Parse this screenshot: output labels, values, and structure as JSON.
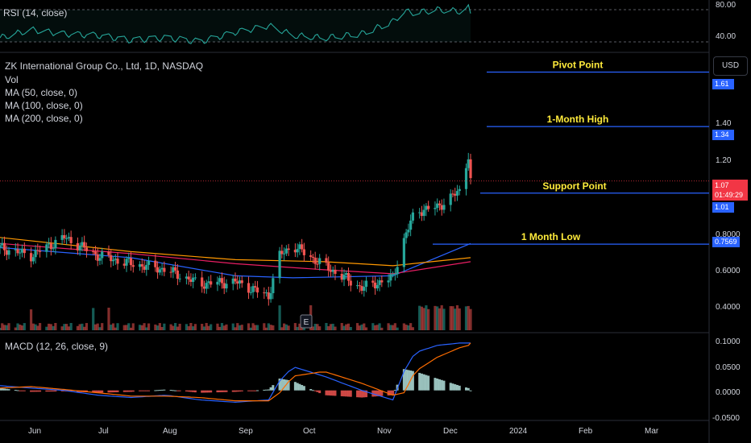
{
  "colors": {
    "background": "#000000",
    "up": "#26a69a",
    "down": "#ef5350",
    "level_line": "#2962ff",
    "ma50": "#2962ff",
    "ma100": "#e91e63",
    "ma200": "#ff9800",
    "rsi": "#26a69a",
    "annotation_text": "#ffeb3b",
    "price_tag": "#f23645"
  },
  "legend": {
    "title": "ZK International Group Co., Ltd, 1D, NASDAQ",
    "vol": "Vol",
    "ma50": "MA (50, close, 0)",
    "ma100": "MA (100, close, 0)",
    "ma200": "MA (200, close, 0)"
  },
  "rsi_panel": {
    "label": "RSI (14, close)",
    "ticks": [
      "80.00",
      "40.00"
    ]
  },
  "macd_panel": {
    "label": "MACD (12, 26, close, 9)",
    "ticks": [
      "0.1000",
      "0.0500",
      "0.0000",
      "-0.0500"
    ]
  },
  "price_axis": {
    "currency": "USD",
    "ticks": [
      "1.40",
      "1.20",
      "0.8000",
      "0.6000",
      "0.4000"
    ]
  },
  "earnings_marker": "E",
  "current_price": {
    "value": "1.07",
    "countdown": "01:49:29"
  },
  "time_axis": [
    "Jun",
    "Jul",
    "Aug",
    "Sep",
    "Oct",
    "Nov",
    "Dec",
    "2024",
    "Feb",
    "Mar"
  ],
  "chart_data": {
    "type": "candlestick",
    "title": "ZK International Group Co., Ltd, 1D, NASDAQ",
    "y_unit": "USD",
    "y_range": [
      0.33,
      1.7
    ],
    "x_range": [
      "2023-05-22",
      "2024-03-31"
    ],
    "levels": [
      {
        "label": "Pivot Point",
        "value": 1.61
      },
      {
        "label": "1-Month High",
        "value": 1.34
      },
      {
        "label": "Support Point",
        "value": 1.01
      },
      {
        "label": "1 Month Low",
        "value": 0.7569
      }
    ],
    "price_series": [
      {
        "date": "2023-05-22",
        "close": 0.74
      },
      {
        "date": "2023-06-05",
        "close": 0.7
      },
      {
        "date": "2023-06-20",
        "close": 0.79
      },
      {
        "date": "2023-07-05",
        "close": 0.7
      },
      {
        "date": "2023-07-20",
        "close": 0.66
      },
      {
        "date": "2023-08-05",
        "close": 0.63
      },
      {
        "date": "2023-08-20",
        "close": 0.56
      },
      {
        "date": "2023-09-05",
        "close": 0.57
      },
      {
        "date": "2023-09-20",
        "close": 0.5
      },
      {
        "date": "2023-09-25",
        "close": 0.7
      },
      {
        "date": "2023-10-01",
        "close": 0.75
      },
      {
        "date": "2023-10-15",
        "close": 0.65
      },
      {
        "date": "2023-11-01",
        "close": 0.54
      },
      {
        "date": "2023-11-15",
        "close": 0.59
      },
      {
        "date": "2023-11-20",
        "close": 0.78
      },
      {
        "date": "2023-11-25",
        "close": 0.92
      },
      {
        "date": "2023-12-05",
        "close": 0.94
      },
      {
        "date": "2023-12-15",
        "close": 1.02
      },
      {
        "date": "2023-12-19",
        "close": 1.2
      },
      {
        "date": "2023-12-20",
        "close": 1.07
      }
    ],
    "ma_series": [
      {
        "name": "MA (50, close, 0)",
        "values": [
          [
            "2023-05-22",
            0.74
          ],
          [
            "2023-07-20",
            0.69
          ],
          [
            "2023-09-05",
            0.6
          ],
          [
            "2023-10-01",
            0.59
          ],
          [
            "2023-11-15",
            0.6
          ],
          [
            "2023-12-20",
            0.76
          ]
        ]
      },
      {
        "name": "MA (100, close, 0)",
        "values": [
          [
            "2023-05-22",
            0.76
          ],
          [
            "2023-07-20",
            0.71
          ],
          [
            "2023-09-05",
            0.66
          ],
          [
            "2023-10-15",
            0.63
          ],
          [
            "2023-11-15",
            0.61
          ],
          [
            "2023-12-20",
            0.67
          ]
        ]
      },
      {
        "name": "MA (200, close, 0)",
        "values": [
          [
            "2023-05-22",
            0.79
          ],
          [
            "2023-07-20",
            0.72
          ],
          [
            "2023-09-05",
            0.68
          ],
          [
            "2023-10-15",
            0.67
          ],
          [
            "2023-11-15",
            0.65
          ],
          [
            "2023-12-20",
            0.69
          ]
        ]
      }
    ],
    "rsi": {
      "range": [
        30,
        90
      ],
      "levels": [
        80,
        40
      ],
      "values": [
        45,
        55,
        50,
        48,
        42,
        45,
        40,
        52,
        60,
        55,
        48,
        45,
        50,
        65,
        78,
        76,
        80,
        78,
        82,
        74
      ]
    },
    "macd": {
      "range": [
        -0.06,
        0.11
      ],
      "macd_line": [
        0.01,
        0.005,
        0.0,
        -0.01,
        -0.015,
        -0.01,
        -0.02,
        -0.025,
        -0.02,
        0.02,
        0.05,
        0.03,
        0.0,
        -0.02,
        0.04,
        0.08,
        0.095,
        0.1,
        0.1,
        0.1
      ],
      "signal_line": [
        0.005,
        0.008,
        0.002,
        -0.005,
        -0.012,
        -0.012,
        -0.015,
        -0.022,
        -0.022,
        -0.005,
        0.03,
        0.04,
        0.015,
        -0.01,
        -0.005,
        0.04,
        0.07,
        0.09,
        0.095,
        0.1
      ]
    }
  }
}
